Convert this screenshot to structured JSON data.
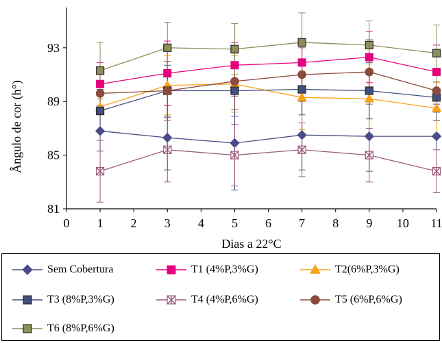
{
  "chart_data": {
    "type": "line",
    "title": "",
    "xlabel": "Dias a 22°C",
    "ylabel": "Ângulo de cor (h°)",
    "xlim": [
      0,
      11
    ],
    "ylim": [
      81,
      96
    ],
    "x_ticks": [
      0,
      1,
      2,
      3,
      4,
      5,
      6,
      7,
      8,
      9,
      10,
      11
    ],
    "y_ticks": [
      81,
      85,
      89,
      93
    ],
    "grid": false,
    "legend_position": "bottom",
    "x": [
      1,
      3,
      5,
      7,
      9,
      11
    ],
    "series": [
      {
        "name": "Sem Cobertura",
        "color": "#4B4B87",
        "marker": "diamond",
        "values": [
          86.8,
          86.3,
          85.9,
          86.5,
          86.4,
          86.4
        ],
        "errors": [
          1.5,
          2.4,
          3.5,
          2.6,
          2.6,
          2.4
        ]
      },
      {
        "name": "T1 (4%P,3%G)",
        "color": "#E6007E",
        "marker": "square",
        "values": [
          90.3,
          91.1,
          91.7,
          91.9,
          92.3,
          91.2
        ],
        "errors": [
          1.6,
          2.4,
          1.7,
          1.8,
          1.9,
          2.0
        ]
      },
      {
        "name": "T2(6%P,3%G)",
        "color": "#F7A21B",
        "marker": "triangle",
        "values": [
          88.6,
          90.2,
          90.3,
          89.3,
          89.2,
          88.5
        ],
        "errors": [
          1.8,
          2.2,
          2.1,
          2.4,
          2.6,
          1.9
        ]
      },
      {
        "name": "T3 (8%P,3%G)",
        "color": "#3F4F7F",
        "marker": "square-border",
        "values": [
          88.3,
          89.8,
          89.8,
          89.9,
          89.8,
          89.3
        ],
        "errors": [
          1.6,
          1.9,
          1.9,
          1.9,
          2.1,
          1.7
        ]
      },
      {
        "name": "T4 (4%P,6%G)",
        "color": "#9A5A7A",
        "marker": "asterisk",
        "values": [
          83.8,
          85.4,
          85.0,
          85.4,
          85.0,
          83.8
        ],
        "errors": [
          2.3,
          2.4,
          2.3,
          2.0,
          2.0,
          1.6
        ]
      },
      {
        "name": "T5 (6%P,6%G)",
        "color": "#8B4A3E",
        "marker": "circle",
        "values": [
          89.6,
          89.8,
          90.5,
          91.0,
          91.2,
          89.8
        ],
        "errors": [
          1.6,
          2.2,
          2.1,
          2.0,
          2.4,
          1.6
        ]
      },
      {
        "name": "T6 (8%P,6%G)",
        "color": "#8E8E5A",
        "marker": "square-border",
        "values": [
          91.3,
          93.0,
          92.9,
          93.4,
          93.2,
          92.6
        ],
        "errors": [
          2.1,
          1.9,
          1.9,
          2.2,
          1.8,
          2.1
        ]
      }
    ]
  }
}
